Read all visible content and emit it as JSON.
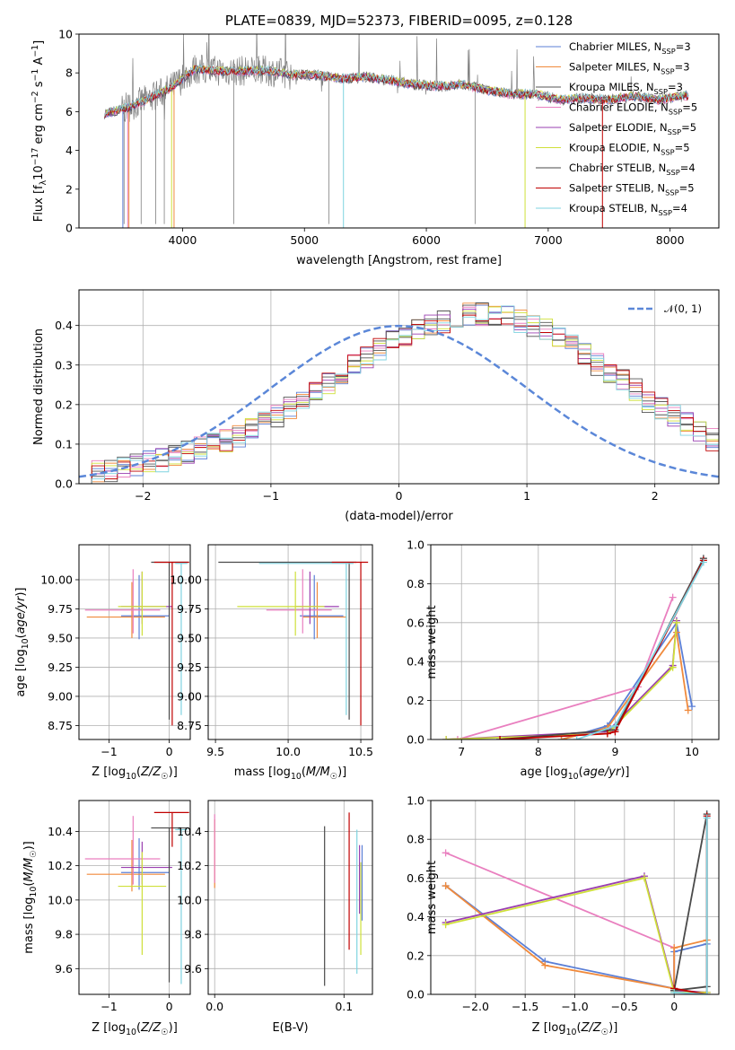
{
  "chart_data": [
    {
      "type": "line",
      "title": "PLATE=0839, MJD=52373, FIBERID=0095, z=0.128",
      "xlabel": "wavelength [Angstrom, rest frame]",
      "ylabel": "Flux [f_λ10^-17 erg cm^-2 s^-1 A^-1]",
      "xlim": [
        3150,
        8400
      ],
      "ylim": [
        0,
        10
      ],
      "xticks": [
        4000,
        5000,
        6000,
        7000,
        8000
      ],
      "yticks": [
        0,
        2,
        4,
        6,
        8,
        10
      ],
      "grid": false,
      "legend_position": "upper right",
      "series": [
        {
          "name": "Chabrier MILES, N_SSP=3",
          "color": "#5b7fd6"
        },
        {
          "name": "Salpeter MILES, N_SSP=3",
          "color": "#f08a3c"
        },
        {
          "name": "Kroupa MILES, N_SSP=3",
          "color": "#555555"
        },
        {
          "name": "Chabrier ELODIE, N_SSP=5",
          "color": "#e97fbf"
        },
        {
          "name": "Salpeter ELODIE, N_SSP=5",
          "color": "#9a3fb0"
        },
        {
          "name": "Kroupa ELODIE, N_SSP=5",
          "color": "#cfe03a"
        },
        {
          "name": "Chabrier STELIB, N_SSP=4",
          "color": "#4a4a4a"
        },
        {
          "name": "Salpeter STELIB, N_SSP=5",
          "color": "#c00000"
        },
        {
          "name": "Kroupa STELIB, N_SSP=4",
          "color": "#7fd3e0"
        }
      ],
      "data_color": "#808080",
      "data_x": [
        3360,
        3500,
        3700,
        3900,
        4100,
        4300,
        4500,
        4700,
        4900,
        5100,
        5300,
        5500,
        5700,
        5900,
        6100,
        6300,
        6500,
        6700,
        6900,
        7100,
        7300,
        7500,
        7700,
        7900,
        8100
      ],
      "data_y": [
        5.9,
        6.1,
        6.6,
        7.2,
        8.2,
        8.1,
        8.1,
        8.1,
        7.9,
        7.9,
        7.7,
        7.8,
        7.6,
        7.4,
        7.3,
        7.4,
        7.1,
        6.9,
        6.9,
        6.6,
        6.7,
        6.6,
        6.8,
        6.6,
        6.8
      ]
    },
    {
      "type": "histogram",
      "xlabel": "(data-model)/error",
      "ylabel": "Normed distribution",
      "xlim": [
        -2.5,
        2.5
      ],
      "ylim": [
        0,
        0.49
      ],
      "xticks": [
        -2,
        -1,
        0,
        1,
        2
      ],
      "yticks": [
        0.0,
        0.1,
        0.2,
        0.3,
        0.4
      ],
      "grid": true,
      "reference_curve": {
        "name": "N(0,1)",
        "color": "#5b87d8"
      },
      "bin_width": 0.1,
      "bin_start": -2.5,
      "values": [
        0.02,
        0.03,
        0.03,
        0.04,
        0.05,
        0.06,
        0.06,
        0.07,
        0.08,
        0.09,
        0.1,
        0.11,
        0.12,
        0.14,
        0.16,
        0.17,
        0.19,
        0.21,
        0.23,
        0.25,
        0.27,
        0.3,
        0.32,
        0.34,
        0.36,
        0.37,
        0.39,
        0.4,
        0.41,
        0.42,
        0.43,
        0.43,
        0.43,
        0.42,
        0.41,
        0.4,
        0.39,
        0.37,
        0.35,
        0.33,
        0.3,
        0.28,
        0.26,
        0.24,
        0.21,
        0.19,
        0.17,
        0.15,
        0.13,
        0.11
      ]
    },
    {
      "type": "errorbar",
      "xlabel": "Z [log10(Z/Z☉)]",
      "ylabel": "age  [log10(age/yr)]",
      "xlim": [
        -1.5,
        0.35
      ],
      "ylim": [
        8.63,
        10.3
      ],
      "xticks": [
        -1,
        0
      ],
      "yticks": [
        8.75,
        9.0,
        9.25,
        9.5,
        9.75,
        10.0
      ],
      "grid": true,
      "points": [
        {
          "x": -0.5,
          "xerr": [
            0.3,
            0.5
          ],
          "y": 9.69,
          "yerr": [
            0.2,
            0.35
          ],
          "color": "#5b7fd6"
        },
        {
          "x": -0.62,
          "xerr": [
            0.75,
            0.55
          ],
          "y": 9.68,
          "yerr": [
            0.18,
            0.3
          ],
          "color": "#f08a3c"
        },
        {
          "x": -0.6,
          "xerr": [
            0.8,
            0.45
          ],
          "y": 9.74,
          "yerr": [
            0.2,
            0.35
          ],
          "color": "#e97fbf"
        },
        {
          "x": -0.45,
          "xerr": [
            0.35,
            0.5
          ],
          "y": 9.77,
          "yerr": [
            0.15,
            0.3
          ],
          "color": "#9a3fb0"
        },
        {
          "x": -0.45,
          "xerr": [
            0.4,
            0.4
          ],
          "y": 9.77,
          "yerr": [
            0.25,
            0.3
          ],
          "color": "#cfe03a"
        },
        {
          "x": 0.0,
          "xerr": [
            0.3,
            0.33
          ],
          "y": 10.15,
          "yerr": [
            1.35,
            0.0
          ],
          "color": "#4a4a4a"
        },
        {
          "x": 0.05,
          "xerr": [
            0.3,
            0.28
          ],
          "y": 10.15,
          "yerr": [
            1.4,
            0.0
          ],
          "color": "#c00000"
        },
        {
          "x": 0.2,
          "xerr": [
            0.1,
            0.1
          ],
          "y": 10.14,
          "yerr": [
            1.3,
            0.0
          ],
          "color": "#7fd3e0"
        }
      ]
    },
    {
      "type": "errorbar",
      "xlabel": "mass [log10(M/M☉)]",
      "ylabel": "",
      "xlim": [
        9.45,
        10.58
      ],
      "ylim": [
        8.63,
        10.3
      ],
      "xticks": [
        9.5,
        10.0,
        10.5
      ],
      "yticks": [
        8.75,
        9.0,
        9.25,
        9.5,
        9.75,
        10.0
      ],
      "grid": true,
      "points": [
        {
          "x": 10.18,
          "xerr": [
            0.1,
            0.2
          ],
          "y": 9.69,
          "yerr": [
            0.2,
            0.35
          ],
          "color": "#5b7fd6"
        },
        {
          "x": 10.2,
          "xerr": [
            0.1,
            0.2
          ],
          "y": 9.68,
          "yerr": [
            0.18,
            0.3
          ],
          "color": "#f08a3c"
        },
        {
          "x": 10.1,
          "xerr": [
            0.25,
            0.2
          ],
          "y": 9.74,
          "yerr": [
            0.2,
            0.35
          ],
          "color": "#e97fbf"
        },
        {
          "x": 10.15,
          "xerr": [
            0.1,
            0.2
          ],
          "y": 9.77,
          "yerr": [
            0.15,
            0.3
          ],
          "color": "#9a3fb0"
        },
        {
          "x": 10.05,
          "xerr": [
            0.4,
            0.2
          ],
          "y": 9.77,
          "yerr": [
            0.25,
            0.3
          ],
          "color": "#cfe03a"
        },
        {
          "x": 10.42,
          "xerr": [
            0.9,
            0.05
          ],
          "y": 10.15,
          "yerr": [
            1.35,
            0.0
          ],
          "color": "#4a4a4a"
        },
        {
          "x": 10.5,
          "xerr": [
            0.2,
            0.05
          ],
          "y": 10.15,
          "yerr": [
            1.4,
            0.0
          ],
          "color": "#c00000"
        },
        {
          "x": 10.4,
          "xerr": [
            0.6,
            0.05
          ],
          "y": 10.14,
          "yerr": [
            1.3,
            0.0
          ],
          "color": "#7fd3e0"
        }
      ]
    },
    {
      "type": "line",
      "xlabel": "age  [log10(age/yr)]",
      "ylabel": "mass weight",
      "xlim": [
        6.6,
        10.35
      ],
      "ylim": [
        0,
        1
      ],
      "xticks": [
        7,
        8,
        9,
        10
      ],
      "yticks": [
        0.0,
        0.2,
        0.4,
        0.6,
        0.8,
        1.0
      ],
      "grid": true,
      "series": [
        {
          "color": "#5b7fd6",
          "x": [
            8.3,
            8.9,
            9.8,
            10.0
          ],
          "y": [
            0.0,
            0.07,
            0.6,
            0.17
          ]
        },
        {
          "color": "#f08a3c",
          "x": [
            8.3,
            8.9,
            9.8,
            9.95
          ],
          "y": [
            0.0,
            0.06,
            0.55,
            0.15
          ]
        },
        {
          "color": "#e97fbf",
          "x": [
            6.95,
            9.3,
            9.75
          ],
          "y": [
            0.0,
            0.27,
            0.73
          ]
        },
        {
          "color": "#9a3fb0",
          "x": [
            6.8,
            8.9,
            9.75,
            9.8
          ],
          "y": [
            0.0,
            0.04,
            0.38,
            0.61
          ]
        },
        {
          "color": "#cfe03a",
          "x": [
            6.8,
            8.9,
            9.75,
            9.8
          ],
          "y": [
            0.0,
            0.03,
            0.37,
            0.6
          ]
        },
        {
          "color": "#4a4a4a",
          "x": [
            7.5,
            9.0,
            10.15
          ],
          "y": [
            0.0,
            0.05,
            0.93
          ]
        },
        {
          "color": "#c00000",
          "x": [
            7.5,
            8.9,
            9.0,
            10.15
          ],
          "y": [
            0.0,
            0.03,
            0.04,
            0.92
          ]
        },
        {
          "color": "#7fd3e0",
          "x": [
            8.5,
            9.0,
            10.15
          ],
          "y": [
            0.0,
            0.07,
            0.91
          ]
        }
      ]
    },
    {
      "type": "errorbar",
      "xlabel": "Z [log10(Z/Z☉)]",
      "ylabel": "mass [log10(M/M☉)]",
      "xlim": [
        -1.5,
        0.35
      ],
      "ylim": [
        9.45,
        10.58
      ],
      "xticks": [
        -1,
        0
      ],
      "yticks": [
        9.6,
        9.8,
        10.0,
        10.2,
        10.4
      ],
      "grid": true,
      "points": [
        {
          "x": -0.5,
          "xerr": [
            0.3,
            0.5
          ],
          "y": 10.16,
          "yerr": [
            0.1,
            0.2
          ],
          "color": "#5b7fd6"
        },
        {
          "x": -0.62,
          "xerr": [
            0.75,
            0.55
          ],
          "y": 10.15,
          "yerr": [
            0.1,
            0.2
          ],
          "color": "#f08a3c"
        },
        {
          "x": -0.6,
          "xerr": [
            0.8,
            0.45
          ],
          "y": 10.24,
          "yerr": [
            0.15,
            0.25
          ],
          "color": "#e97fbf"
        },
        {
          "x": -0.45,
          "xerr": [
            0.35,
            0.5
          ],
          "y": 10.19,
          "yerr": [
            0.1,
            0.15
          ],
          "color": "#9a3fb0"
        },
        {
          "x": -0.45,
          "xerr": [
            0.4,
            0.4
          ],
          "y": 10.08,
          "yerr": [
            0.4,
            0.2
          ],
          "color": "#cfe03a"
        },
        {
          "x": 0.0,
          "xerr": [
            0.3,
            0.33
          ],
          "y": 10.42,
          "yerr": [
            0.9,
            0.0
          ],
          "color": "#4a4a4a"
        },
        {
          "x": 0.05,
          "xerr": [
            0.3,
            0.28
          ],
          "y": 10.51,
          "yerr": [
            0.2,
            0.0
          ],
          "color": "#c00000"
        },
        {
          "x": 0.2,
          "xerr": [
            0.1,
            0.1
          ],
          "y": 10.41,
          "yerr": [
            0.9,
            0.0
          ],
          "color": "#7fd3e0"
        }
      ]
    },
    {
      "type": "errorbar",
      "xlabel": "E(B-V)",
      "ylabel": "",
      "xlim": [
        -0.005,
        0.122
      ],
      "ylim": [
        9.45,
        10.58
      ],
      "xticks": [
        0.0,
        0.1
      ],
      "yticks": [
        9.6,
        9.8,
        10.0,
        10.2,
        10.4
      ],
      "grid": true,
      "points": [
        {
          "x": 0.0,
          "y": 10.25,
          "yerr": [
            0.18,
            0.22
          ],
          "color": "#f08a3c"
        },
        {
          "x": 0.0,
          "y": 10.3,
          "yerr": [
            0.2,
            0.2
          ],
          "color": "#e97fbf"
        },
        {
          "x": 0.085,
          "y": 9.97,
          "yerr": [
            0.47,
            0.46
          ],
          "color": "#4a4a4a"
        },
        {
          "x": 0.104,
          "y": 10.11,
          "yerr": [
            0.4,
            0.4
          ],
          "color": "#c00000"
        },
        {
          "x": 0.11,
          "y": 9.99,
          "yerr": [
            0.42,
            0.42
          ],
          "color": "#7fd3e0"
        },
        {
          "x": 0.112,
          "y": 10.12,
          "yerr": [
            0.2,
            0.2
          ],
          "color": "#9a3fb0"
        },
        {
          "x": 0.113,
          "y": 9.95,
          "yerr": [
            0.27,
            0.27
          ],
          "color": "#cfe03a"
        },
        {
          "x": 0.114,
          "y": 10.1,
          "yerr": [
            0.22,
            0.22
          ],
          "color": "#5b7fd6"
        }
      ]
    },
    {
      "type": "line",
      "xlabel": "Z [log10(Z/Z☉)]",
      "ylabel": "mass weight",
      "xlim": [
        -2.45,
        0.45
      ],
      "ylim": [
        0,
        1
      ],
      "xticks": [
        -2.0,
        -1.5,
        -1.0,
        -0.5,
        0.0
      ],
      "yticks": [
        0.0,
        0.2,
        0.4,
        0.6,
        0.8,
        1.0
      ],
      "grid": true,
      "series": [
        {
          "color": "#e97fbf",
          "x": [
            -2.3,
            0.0,
            0.0
          ],
          "y": [
            0.73,
            0.24,
            0.02
          ]
        },
        {
          "color": "#5b7fd6",
          "x": [
            -2.3,
            -1.3,
            0.0,
            0.0,
            0.33
          ],
          "y": [
            0.56,
            0.17,
            0.03,
            0.22,
            0.26
          ]
        },
        {
          "color": "#f08a3c",
          "x": [
            -2.3,
            -1.3,
            0.0,
            0.0,
            0.33
          ],
          "y": [
            0.56,
            0.15,
            0.03,
            0.24,
            0.28
          ]
        },
        {
          "color": "#9a3fb0",
          "x": [
            -2.3,
            -0.3,
            0.0,
            0.33
          ],
          "y": [
            0.37,
            0.61,
            0.02,
            0.01
          ]
        },
        {
          "color": "#cfe03a",
          "x": [
            -2.3,
            -0.3,
            0.0,
            0.33
          ],
          "y": [
            0.36,
            0.6,
            0.01,
            0.01
          ]
        },
        {
          "color": "#4a4a4a",
          "x": [
            0.0,
            0.33,
            0.33,
            0.0
          ],
          "y": [
            0.02,
            0.04,
            0.93,
            0.02
          ]
        },
        {
          "color": "#c00000",
          "x": [
            0.0,
            0.33,
            0.33
          ],
          "y": [
            0.03,
            0.0,
            0.92
          ]
        },
        {
          "color": "#7fd3e0",
          "x": [
            0.0,
            0.33,
            0.33
          ],
          "y": [
            0.01,
            0.0,
            0.91
          ]
        }
      ]
    }
  ]
}
